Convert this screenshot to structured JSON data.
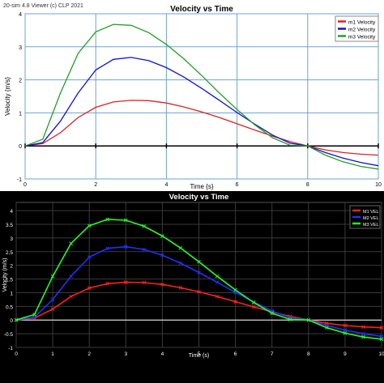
{
  "top_chart": {
    "watermark": "20-sim 4.8 Viewer (c) CLP 2021",
    "colors": {
      "background": "#ffffff",
      "grid": "#6aa3d8",
      "axis_text": "#000000",
      "zero_line": "#000000"
    },
    "chart_data": {
      "type": "line",
      "title": "Velocity vs Time",
      "xlabel": "Time {s}",
      "ylabel": "Velocity {m/s}",
      "xlim": [
        0,
        10
      ],
      "ylim": [
        -1,
        4
      ],
      "x_ticks": [
        "0",
        "2",
        "4",
        "6",
        "8",
        "10"
      ],
      "y_ticks": [
        "-1",
        "0",
        "1",
        "2",
        "3",
        "4"
      ],
      "grid": true,
      "legend_position": "top-right",
      "x": [
        0,
        0.5,
        1,
        1.5,
        2,
        2.5,
        3,
        3.5,
        4,
        4.5,
        5,
        5.5,
        6,
        6.5,
        7,
        7.5,
        8,
        8.5,
        9,
        9.5,
        10
      ],
      "series": [
        {
          "name": "m1 Velocity",
          "color": "#e02020",
          "values": [
            0,
            0.07,
            0.4,
            0.86,
            1.17,
            1.33,
            1.38,
            1.37,
            1.3,
            1.18,
            1.03,
            0.86,
            0.67,
            0.48,
            0.3,
            0.13,
            0,
            -0.12,
            -0.2,
            -0.25,
            -0.28
          ]
        },
        {
          "name": "m2 Velocity",
          "color": "#1010e0",
          "values": [
            0,
            0.1,
            0.75,
            1.6,
            2.3,
            2.62,
            2.68,
            2.58,
            2.37,
            2.08,
            1.74,
            1.38,
            1.01,
            0.66,
            0.33,
            0.08,
            0,
            -0.2,
            -0.37,
            -0.5,
            -0.6
          ]
        },
        {
          "name": "m3 Velocity",
          "color": "#20a020",
          "values": [
            0,
            0.2,
            1.6,
            2.8,
            3.45,
            3.68,
            3.65,
            3.43,
            3.07,
            2.63,
            2.13,
            1.6,
            1.1,
            0.64,
            0.25,
            0.02,
            0,
            -0.28,
            -0.48,
            -0.62,
            -0.7
          ]
        }
      ]
    }
  },
  "bottom_chart": {
    "colors": {
      "background": "#000000",
      "grid": "#3a3a3a",
      "axis_text": "#ffffff",
      "zero_line": "#ffffff"
    },
    "chart_data": {
      "type": "line",
      "title": "Velocity vs Time",
      "xlabel": "Time (s)",
      "ylabel": "Velocity (m/s)",
      "xlim": [
        0,
        10
      ],
      "ylim": [
        -1,
        4.3
      ],
      "x_ticks": [
        "0",
        "1",
        "2",
        "3",
        "4",
        "5",
        "6",
        "7",
        "8",
        "9",
        "10"
      ],
      "y_ticks": [
        "-1",
        "-0.5",
        "0",
        "0.5",
        "1",
        "1.5",
        "2",
        "2.5",
        "3",
        "3.5",
        "4"
      ],
      "grid": true,
      "legend_position": "top-right",
      "marker": "x",
      "x": [
        0,
        0.5,
        1,
        1.5,
        2,
        2.5,
        3,
        3.5,
        4,
        4.5,
        5,
        5.5,
        6,
        6.5,
        7,
        7.5,
        8,
        8.5,
        9,
        9.5,
        10
      ],
      "series": [
        {
          "name": "M1 VEL",
          "color": "#ff2020",
          "values": [
            0,
            0.07,
            0.4,
            0.86,
            1.17,
            1.33,
            1.38,
            1.37,
            1.3,
            1.18,
            1.03,
            0.86,
            0.67,
            0.48,
            0.3,
            0.13,
            0,
            -0.12,
            -0.2,
            -0.25,
            -0.28
          ]
        },
        {
          "name": "M2 VEL",
          "color": "#2030ff",
          "values": [
            0,
            0.1,
            0.75,
            1.6,
            2.3,
            2.62,
            2.68,
            2.58,
            2.37,
            2.08,
            1.74,
            1.38,
            1.01,
            0.66,
            0.33,
            0.08,
            0,
            -0.2,
            -0.37,
            -0.5,
            -0.6
          ]
        },
        {
          "name": "M3 VEL",
          "color": "#20ff20",
          "values": [
            0,
            0.2,
            1.6,
            2.8,
            3.45,
            3.68,
            3.65,
            3.43,
            3.07,
            2.63,
            2.13,
            1.6,
            1.1,
            0.64,
            0.25,
            0.02,
            0,
            -0.28,
            -0.48,
            -0.62,
            -0.7
          ]
        }
      ]
    }
  }
}
